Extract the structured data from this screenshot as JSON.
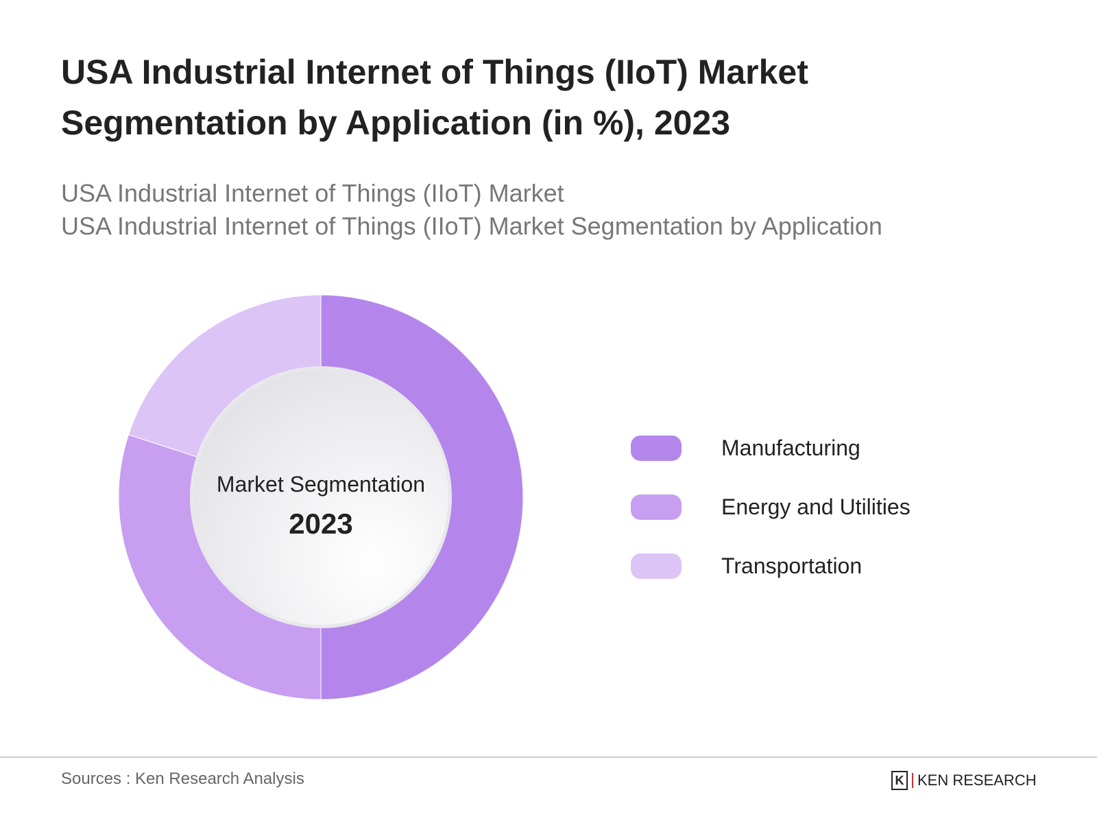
{
  "title_line1": "USA Industrial Internet of Things (IIoT) Market",
  "title_line2": "Segmentation by Application (in %), 2023",
  "subtitle_line1": "USA Industrial Internet of Things (IIoT) Market",
  "subtitle_line2": "USA Industrial Internet of Things (IIoT) Market Segmentation by Application",
  "chart_data": {
    "type": "pie",
    "variant": "donut",
    "center_label": "Market Segmentation",
    "center_value": "2023",
    "categories": [
      "Manufacturing",
      "Energy and Utilities",
      "Transportation"
    ],
    "values": [
      50,
      30,
      20
    ],
    "colors": [
      "#b486ec",
      "#c79ef0",
      "#dcc4f7"
    ],
    "legend_position": "right"
  },
  "footer": {
    "sources": "Sources : Ken Research Analysis",
    "logo_text": "KEN RESEARCH"
  }
}
